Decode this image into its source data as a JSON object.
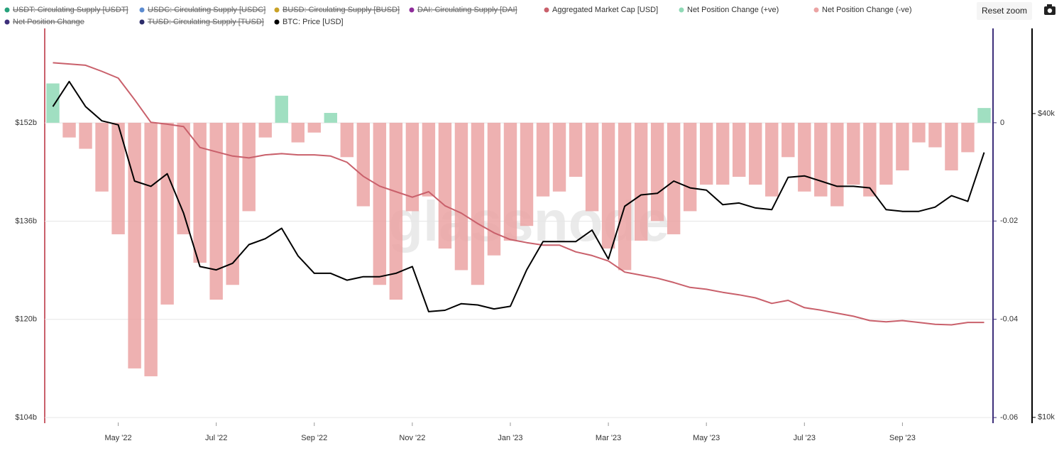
{
  "chart_data": {
    "type": "combo",
    "watermark": "glassnode",
    "reset_button": "Reset zoom",
    "grid": true,
    "categories": [
      null,
      null,
      null,
      null,
      "May '22",
      null,
      null,
      null,
      null,
      null,
      "Jul '22",
      null,
      null,
      null,
      null,
      null,
      "Sep '22",
      null,
      null,
      null,
      null,
      null,
      "Nov '22",
      null,
      null,
      null,
      null,
      null,
      "Jan '23",
      null,
      null,
      null,
      null,
      null,
      "Mar '23",
      null,
      null,
      null,
      null,
      null,
      "May '23",
      null,
      null,
      null,
      null,
      null,
      "Jul '23",
      null,
      null,
      null,
      null,
      null,
      "Sep '23",
      null,
      null,
      null,
      null,
      null
    ],
    "series": [
      {
        "name": "Net Position Change (+ve)",
        "color": "#8fd9b6",
        "type": "bar",
        "axis": "y2",
        "values": [
          0.008,
          null,
          null,
          null,
          null,
          null,
          null,
          null,
          null,
          null,
          null,
          null,
          null,
          null,
          0.0055,
          null,
          null,
          0.002,
          null,
          null,
          null,
          null,
          null,
          null,
          null,
          null,
          null,
          null,
          null,
          null,
          null,
          null,
          null,
          null,
          null,
          null,
          null,
          null,
          null,
          null,
          null,
          null,
          null,
          null,
          null,
          null,
          null,
          null,
          null,
          null,
          null,
          null,
          null,
          null,
          null,
          null,
          null,
          0.003
        ]
      },
      {
        "name": "Net Position Change (-ve)",
        "color": "#eba3a3",
        "type": "bar",
        "axis": "y2",
        "values": [
          null,
          -0.003,
          -0.0053,
          -0.014,
          -0.0227,
          -0.05,
          -0.0516,
          -0.037,
          -0.0227,
          -0.0285,
          -0.036,
          -0.033,
          -0.018,
          -0.003,
          null,
          -0.004,
          -0.002,
          null,
          -0.007,
          -0.017,
          -0.033,
          -0.036,
          -0.018,
          -0.015,
          -0.0256,
          -0.03,
          -0.033,
          -0.027,
          -0.024,
          -0.021,
          -0.015,
          -0.014,
          -0.011,
          -0.018,
          -0.0256,
          -0.03,
          -0.024,
          -0.02,
          -0.0227,
          -0.018,
          -0.0126,
          -0.0126,
          -0.011,
          -0.0126,
          -0.015,
          -0.007,
          -0.014,
          -0.015,
          -0.017,
          -0.0126,
          -0.015,
          -0.0126,
          -0.0097,
          -0.004,
          -0.005,
          -0.0097,
          -0.006,
          null
        ]
      },
      {
        "name": "Aggregated Market Cap [USD]",
        "color": "#c9606b",
        "type": "line",
        "axis": "y",
        "values": [
          161.8,
          161.6,
          161.4,
          160.4,
          159.3,
          155.8,
          152.1,
          151.8,
          151.4,
          148.0,
          147.3,
          146.6,
          146.3,
          146.8,
          147.0,
          146.8,
          146.8,
          146.6,
          145.6,
          143.3,
          141.7,
          140.8,
          139.9,
          140.8,
          138.5,
          137.3,
          135.6,
          134.1,
          133.0,
          132.5,
          132.1,
          132.1,
          131.0,
          130.4,
          129.5,
          127.7,
          127.2,
          126.7,
          126.0,
          125.2,
          124.9,
          124.4,
          124.0,
          123.5,
          122.6,
          123.1,
          121.9,
          121.5,
          121.0,
          120.5,
          119.8,
          119.6,
          119.8,
          119.5,
          119.2,
          119.1,
          119.5,
          119.5
        ]
      },
      {
        "name": "BTC: Price [USD]",
        "color": "#000000",
        "type": "line",
        "axis": "y3",
        "values": [
          41300,
          46300,
          41300,
          38700,
          38000,
          29400,
          28700,
          30400,
          25400,
          19900,
          19600,
          20200,
          22000,
          22600,
          23700,
          20900,
          19300,
          19300,
          18700,
          19000,
          19000,
          19300,
          19900,
          16200,
          16300,
          16800,
          16700,
          16400,
          16600,
          19600,
          22300,
          22300,
          22300,
          23500,
          20600,
          26200,
          27600,
          27800,
          29400,
          28500,
          28200,
          26400,
          26600,
          26000,
          25800,
          29900,
          30100,
          29400,
          28700,
          28700,
          28500,
          25800,
          25600,
          25600,
          26100,
          27500,
          26800,
          33500
        ]
      }
    ],
    "hidden_series": [
      {
        "name": "USDT: Circulating Supply [USDT]",
        "color": "#26a17b"
      },
      {
        "name": "USDC: Circulating Supply [USDC]",
        "color": "#5b8bd0"
      },
      {
        "name": "BUSD: Circulating Supply [BUSD]",
        "color": "#c9a227"
      },
      {
        "name": "DAI: Circulating Supply [DAI]",
        "color": "#8e2c9a"
      },
      {
        "name": "Net Position Change",
        "color": "#3d2f7a"
      },
      {
        "name": "TUSD: Circulating Supply [TUSD]",
        "color": "#2c2c6a"
      }
    ],
    "ylim": [
      103.2,
      167.4
    ],
    "yticks": [
      {
        "value": 104,
        "label": "$104b"
      },
      {
        "value": 120,
        "label": "$120b"
      },
      {
        "value": 136,
        "label": "$136b"
      },
      {
        "value": 152,
        "label": "$152b"
      }
    ],
    "y2lim": [
      -0.061,
      0.0192
    ],
    "y2ticks": [
      0,
      -0.02,
      -0.04,
      -0.06
    ],
    "y3lim": [
      9770,
      59000
    ],
    "y3scale": "log",
    "y3ticks": [
      {
        "value": 40000,
        "label": "$40k"
      },
      {
        "value": 10000,
        "label": "$10k"
      }
    ]
  }
}
